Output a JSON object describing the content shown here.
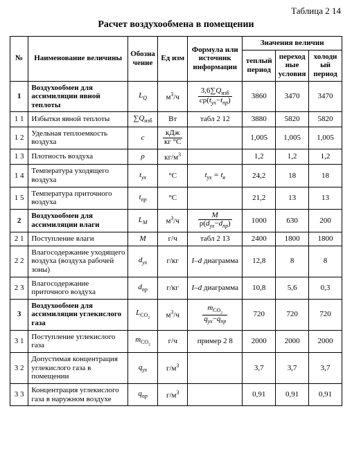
{
  "table_label": "Таблица 2 14",
  "title": "Расчет воздухообмена в помещении",
  "headers": {
    "num": "№",
    "name": "Наименование величины",
    "symbol": "Обозначение",
    "unit": "Ед изм",
    "source": "Формула или источник информации",
    "values_group": "Значения величин",
    "warm": "теплый период",
    "trans": "переходные условия",
    "cold": "холодный период"
  },
  "rows": [
    {
      "num": "1",
      "bold": true,
      "name": "Воздухообмен для ассимиляции явной теплоты",
      "symbol_html": "<span class='it'>L<sub>Q</sub></span>",
      "unit_html": "м<sup>3</sup>/ч",
      "source_html": "<span class='frac'><span class='top'>3,6∑<span class='it'>Q</span><sub>изб</sub></span><span class='bot'><span class='it'>c</span>ρ(<span class='it'>t<sub>ух</sub></span>−<span class='it'>t<sub>пр</sub></span>)</span></span>",
      "warm": "3860",
      "trans": "3470",
      "cold": "3470"
    },
    {
      "num": "1 1",
      "name": "Избытки явной теплоты",
      "symbol_html": "∑<span class='it'>Q</span><sub>изб</sub>",
      "unit_html": "Вт",
      "source_html": "табл 2 12",
      "warm": "3880",
      "trans": "5820",
      "cold": "5820"
    },
    {
      "num": "1 2",
      "name": "Удельная теплоемкость воздуха",
      "symbol_html": "<span class='it'>c</span>",
      "unit_html": "<span class='frac'><span class='top'>кДж</span><span class='bot'>кг °С</span></span>",
      "source_html": "",
      "warm": "1,005",
      "trans": "1,005",
      "cold": "1,005"
    },
    {
      "num": "1 3",
      "name": "Плотность воздуха",
      "symbol_html": "<span class='it'>ρ</span>",
      "unit_html": "кг/м<sup>3</sup>",
      "source_html": "",
      "warm": "1,2",
      "trans": "1,2",
      "cold": "1,2"
    },
    {
      "num": "1 4",
      "name": "Температура уходящего воздуха",
      "symbol_html": "<span class='it'>t<sub>ух</sub></span>",
      "unit_html": "°С",
      "source_html": "<span class='it'>t<sub>ух</sub> = t<sub>в</sub></span>",
      "warm": "24,2",
      "trans": "18",
      "cold": "18"
    },
    {
      "num": "1 5",
      "name": "Температура приточного воздуха",
      "symbol_html": "<span class='it'>t<sub>пр</sub></span>",
      "unit_html": "°С",
      "source_html": "",
      "warm": "21,2",
      "trans": "13",
      "cold": "13"
    },
    {
      "num": "2",
      "bold": true,
      "name": "Воздухообмен для ассимиляции влаги",
      "symbol_html": "<span class='it'>L<sub>M</sub></span>",
      "unit_html": "м<sup>3</sup>/ч",
      "source_html": "<span class='frac'><span class='top'><span class='it'>M</span></span><span class='bot'>ρ(<span class='it'>d<sub>ух</sub></span>−<span class='it'>d<sub>пр</sub></span>)</span></span>",
      "warm": "1000",
      "trans": "630",
      "cold": "200"
    },
    {
      "num": "2 1",
      "name": "Поступление влаги",
      "symbol_html": "<span class='it'>M</span>",
      "unit_html": "г/ч",
      "source_html": "табл 2 13",
      "warm": "2400",
      "trans": "1800",
      "cold": "1800"
    },
    {
      "num": "2 2",
      "name": "Влагосодержание уходящего воздуха (воздуха рабочей зоны)",
      "symbol_html": "<span class='it'>d<sub>ух</sub></span>",
      "unit_html": "г/кг",
      "source_html": "<span class='it'>I–d</span> диаграмма",
      "warm": "12,8",
      "trans": "8",
      "cold": "8"
    },
    {
      "num": "2 3",
      "name": "Влагосодержание приточного воздуха",
      "symbol_html": "<span class='it'>d<sub>пр</sub></span>",
      "unit_html": "г/кг",
      "source_html": "<span class='it'>I–d</span> диаграмма",
      "warm": "10,8",
      "trans": "5,6",
      "cold": "0,3"
    },
    {
      "num": "3",
      "bold": true,
      "name": "Воздухообмен для ассимиляции углекислого газа",
      "symbol_html": "<span class='it'>L</span><sub>CO<sub>2</sub></sub>",
      "unit_html": "м<sup>3</sup>/ч",
      "source_html": "<span class='frac'><span class='top'><span class='it'>m</span><sub>CO<sub>2</sub></sub></span><span class='bot'><span class='it'>q<sub>ух</sub></span>−<span class='it'>q<sub>пр</sub></span></span></span>",
      "warm": "720",
      "trans": "720",
      "cold": "720"
    },
    {
      "num": "3 1",
      "name": "Поступление углекислого газа",
      "symbol_html": "<span class='it'>m</span><sub>CO<sub>2</sub></sub>",
      "unit_html": "г/ч",
      "source_html": "пример 2 8",
      "warm": "2000",
      "trans": "2000",
      "cold": "2000"
    },
    {
      "num": "3 2",
      "name": "Допустимая концентрация углекислого газа в помещении",
      "symbol_html": "<span class='it'>q<sub>ух</sub></span>",
      "unit_html": "г/м<sup>3</sup>",
      "source_html": "",
      "warm": "3,7",
      "trans": "3,7",
      "cold": "3,7"
    },
    {
      "num": "3 3",
      "name": "Концентрация углекислого газа в наружном воздухе",
      "symbol_html": "<span class='it'>q<sub>пр</sub></span>",
      "unit_html": "г/м<sup>3</sup>",
      "source_html": "",
      "warm": "0,91",
      "trans": "0,91",
      "cold": "0,91"
    }
  ]
}
